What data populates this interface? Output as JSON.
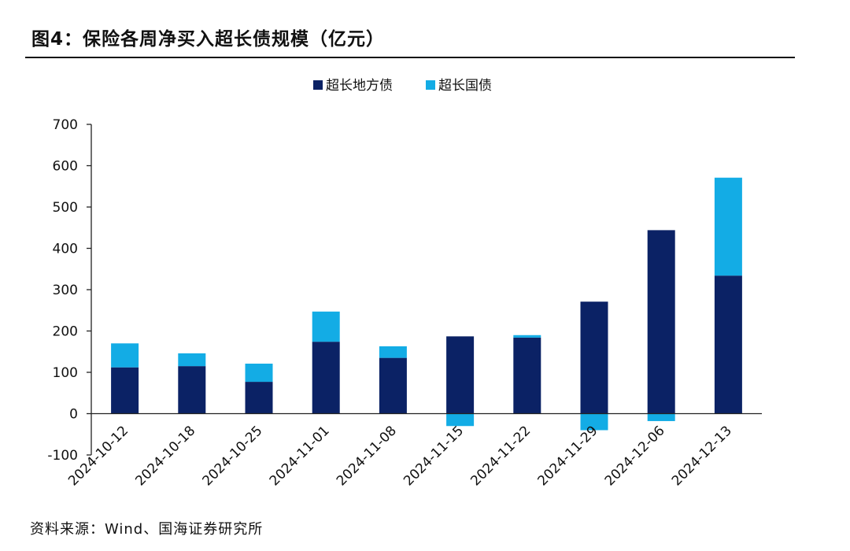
{
  "header": {
    "title": "图4：保险各周净买入超长债规模（亿元）"
  },
  "footer": {
    "source": "资料来源：Wind、国海证券研究所"
  },
  "chart_data": {
    "type": "bar",
    "stacked": true,
    "title": "图4：保险各周净买入超长债规模（亿元）",
    "xlabel": "",
    "ylabel": "",
    "ylim": [
      -100,
      700
    ],
    "yticks": [
      -100,
      0,
      100,
      200,
      300,
      400,
      500,
      600,
      700
    ],
    "grid": false,
    "legend_position": "top",
    "categories": [
      "2024-10-12",
      "2024-10-18",
      "2024-10-25",
      "2024-11-01",
      "2024-11-08",
      "2024-11-15",
      "2024-11-22",
      "2024-11-29",
      "2024-12-06",
      "2024-12-13"
    ],
    "series": [
      {
        "name": "超长地方债",
        "color": "#0b2265",
        "values": [
          112,
          115,
          77,
          174,
          135,
          187,
          184,
          271,
          444,
          334
        ]
      },
      {
        "name": "超长国债",
        "color": "#13ace5",
        "values": [
          58,
          31,
          44,
          73,
          28,
          -30,
          6,
          -40,
          -18,
          237
        ]
      }
    ]
  }
}
